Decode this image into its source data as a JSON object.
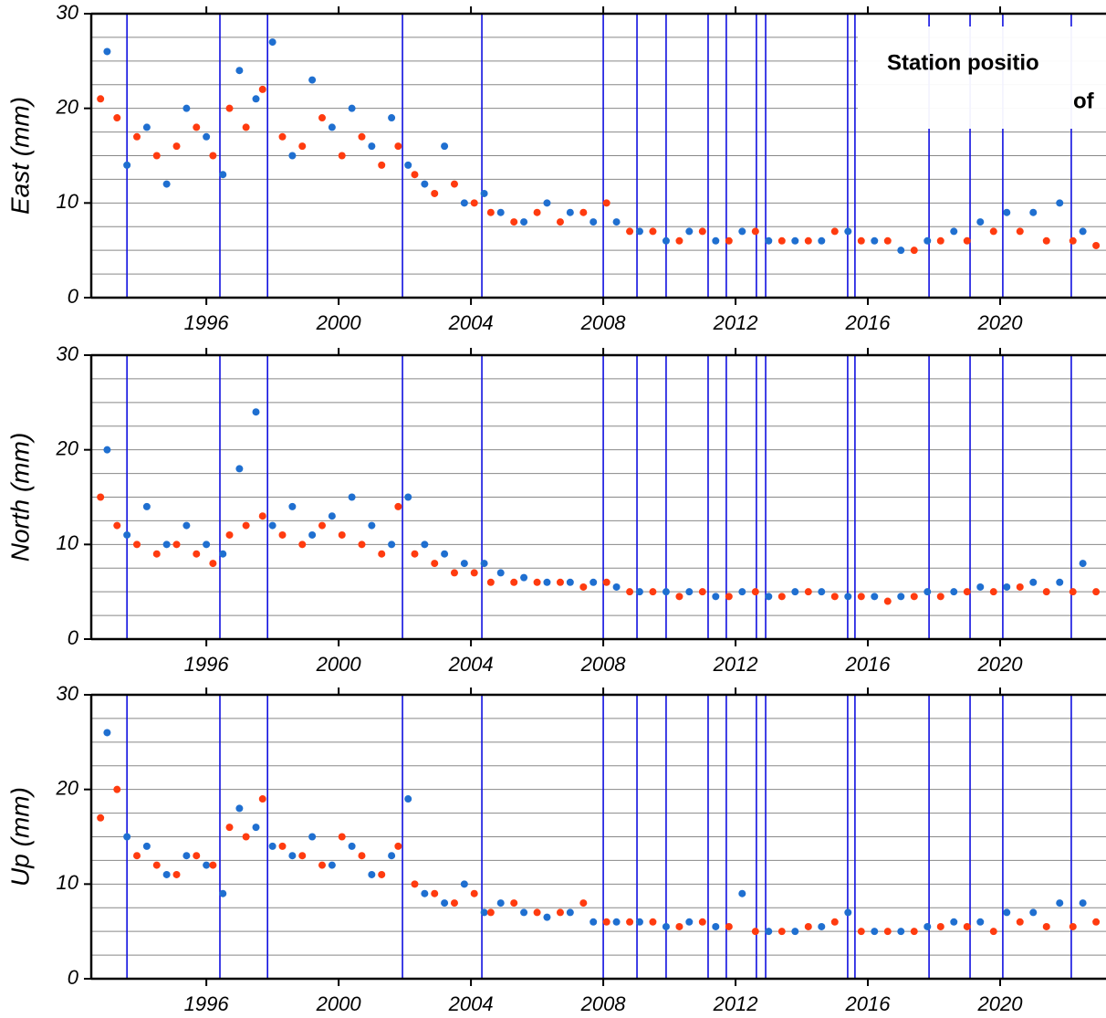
{
  "chart_data": [
    {
      "type": "scatter",
      "ylabel": "East (mm)",
      "annotation_lines": [
        "Station positio",
        "of"
      ],
      "xlim": [
        1992.52,
        2023.2
      ],
      "xticks": [
        1996,
        2000,
        2004,
        2008,
        2012,
        2016,
        2020
      ],
      "ylim": [
        0,
        30
      ],
      "yticks": [
        0,
        10,
        20,
        30
      ],
      "ygrid": [
        2.5,
        5,
        7.5,
        10,
        12.5,
        15,
        17.5,
        20,
        22.5,
        25,
        27.5
      ],
      "event_lines": [
        1993.6,
        1996.41,
        1997.85,
        2001.93,
        2004.33,
        2008.0,
        2009.02,
        2009.9,
        2011.17,
        2011.72,
        2012.63,
        2012.91,
        2015.39,
        2015.61,
        2017.85,
        2019.09,
        2020.08,
        2022.15
      ],
      "series": [
        {
          "color": "#1f6fd0",
          "x": [
            1993.0,
            1993.6,
            1994.2,
            1994.8,
            1995.4,
            1996.0,
            1996.5,
            1997.0,
            1997.5,
            1998.0,
            1998.6,
            1999.2,
            1999.8,
            2000.4,
            2001.0,
            2001.6,
            2002.1,
            2002.6,
            2003.2,
            2003.8,
            2004.4,
            2004.9,
            2005.6,
            2006.3,
            2007.0,
            2007.7,
            2008.4,
            2009.1,
            2009.9,
            2010.6,
            2011.4,
            2012.2,
            2013.0,
            2013.8,
            2014.6,
            2015.4,
            2016.2,
            2017.0,
            2017.8,
            2018.6,
            2019.4,
            2020.2,
            2021.0,
            2021.8,
            2022.5
          ],
          "values": [
            26,
            14,
            18,
            12,
            20,
            17,
            13,
            24,
            21,
            27,
            15,
            23,
            18,
            20,
            16,
            19,
            14,
            12,
            16,
            10,
            11,
            9,
            8,
            10,
            9,
            8,
            8,
            7,
            6,
            7,
            6,
            7,
            6,
            6,
            6,
            7,
            6,
            5,
            6,
            7,
            8,
            9,
            9,
            10,
            7
          ]
        },
        {
          "color": "#ff3b0f",
          "x": [
            1992.8,
            1993.3,
            1993.9,
            1994.5,
            1995.1,
            1995.7,
            1996.2,
            1996.7,
            1997.2,
            1997.7,
            1998.3,
            1998.9,
            1999.5,
            2000.1,
            2000.7,
            2001.3,
            2001.8,
            2002.3,
            2002.9,
            2003.5,
            2004.1,
            2004.6,
            2005.3,
            2006.0,
            2006.7,
            2007.4,
            2008.1,
            2008.8,
            2009.5,
            2010.3,
            2011.0,
            2011.8,
            2012.6,
            2013.4,
            2014.2,
            2015.0,
            2015.8,
            2016.6,
            2017.4,
            2018.2,
            2019.0,
            2019.8,
            2020.6,
            2021.4,
            2022.2,
            2022.9
          ],
          "values": [
            21,
            19,
            17,
            15,
            16,
            18,
            15,
            20,
            18,
            22,
            17,
            16,
            19,
            15,
            17,
            14,
            16,
            13,
            11,
            12,
            10,
            9,
            8,
            9,
            8,
            9,
            10,
            7,
            7,
            6,
            7,
            6,
            7,
            6,
            6,
            7,
            6,
            6,
            5,
            6,
            6,
            7,
            7,
            6,
            6,
            5.5
          ]
        }
      ]
    },
    {
      "type": "scatter",
      "ylabel": "North (mm)",
      "xlim": [
        1992.52,
        2023.2
      ],
      "xticks": [
        1996,
        2000,
        2004,
        2008,
        2012,
        2016,
        2020
      ],
      "ylim": [
        0,
        30
      ],
      "yticks": [
        0,
        10,
        20,
        30
      ],
      "ygrid": [
        2.5,
        5,
        7.5,
        10,
        12.5,
        15,
        17.5,
        20,
        22.5,
        25,
        27.5
      ],
      "event_lines": [
        1993.6,
        1996.41,
        1997.85,
        2001.93,
        2004.33,
        2008.0,
        2009.02,
        2009.9,
        2011.17,
        2011.72,
        2012.63,
        2012.91,
        2015.39,
        2015.61,
        2017.85,
        2019.09,
        2020.08,
        2022.15
      ],
      "series": [
        {
          "color": "#1f6fd0",
          "x": [
            1993.0,
            1993.6,
            1994.2,
            1994.8,
            1995.4,
            1996.0,
            1996.5,
            1997.0,
            1997.5,
            1998.0,
            1998.6,
            1999.2,
            1999.8,
            2000.4,
            2001.0,
            2001.6,
            2002.1,
            2002.6,
            2003.2,
            2003.8,
            2004.4,
            2004.9,
            2005.6,
            2006.3,
            2007.0,
            2007.7,
            2008.4,
            2009.1,
            2009.9,
            2010.6,
            2011.4,
            2012.2,
            2013.0,
            2013.8,
            2014.6,
            2015.4,
            2016.2,
            2017.0,
            2017.8,
            2018.6,
            2019.4,
            2020.2,
            2021.0,
            2021.8,
            2022.5
          ],
          "values": [
            20,
            11,
            14,
            10,
            12,
            10,
            9,
            18,
            24,
            12,
            14,
            11,
            13,
            15,
            12,
            10,
            15,
            10,
            9,
            8,
            8,
            7,
            6.5,
            6,
            6,
            6,
            5.5,
            5,
            5,
            5,
            4.5,
            5,
            4.5,
            5,
            5,
            4.5,
            4.5,
            4.5,
            5,
            5,
            5.5,
            5.5,
            6,
            6,
            8
          ]
        },
        {
          "color": "#ff3b0f",
          "x": [
            1992.8,
            1993.3,
            1993.9,
            1994.5,
            1995.1,
            1995.7,
            1996.2,
            1996.7,
            1997.2,
            1997.7,
            1998.3,
            1998.9,
            1999.5,
            2000.1,
            2000.7,
            2001.3,
            2001.8,
            2002.3,
            2002.9,
            2003.5,
            2004.1,
            2004.6,
            2005.3,
            2006.0,
            2006.7,
            2007.4,
            2008.1,
            2008.8,
            2009.5,
            2010.3,
            2011.0,
            2011.8,
            2012.6,
            2013.4,
            2014.2,
            2015.0,
            2015.8,
            2016.6,
            2017.4,
            2018.2,
            2019.0,
            2019.8,
            2020.6,
            2021.4,
            2022.2,
            2022.9
          ],
          "values": [
            15,
            12,
            10,
            9,
            10,
            9,
            8,
            11,
            12,
            13,
            11,
            10,
            12,
            11,
            10,
            9,
            14,
            9,
            8,
            7,
            7,
            6,
            6,
            6,
            6,
            5.5,
            6,
            5,
            5,
            4.5,
            5,
            4.5,
            5,
            4.5,
            5,
            4.5,
            4.5,
            4,
            4.5,
            4.5,
            5,
            5,
            5.5,
            5,
            5,
            5
          ]
        }
      ]
    },
    {
      "type": "scatter",
      "ylabel": "Up (mm)",
      "xlim": [
        1992.52,
        2023.2
      ],
      "xticks": [
        1996,
        2000,
        2004,
        2008,
        2012,
        2016,
        2020
      ],
      "ylim": [
        0,
        30
      ],
      "yticks": [
        0,
        10,
        20,
        30
      ],
      "ygrid": [
        2.5,
        5,
        7.5,
        10,
        12.5,
        15,
        17.5,
        20,
        22.5,
        25,
        27.5
      ],
      "event_lines": [
        1993.6,
        1996.41,
        1997.85,
        2001.93,
        2004.33,
        2008.0,
        2009.02,
        2009.9,
        2011.17,
        2011.72,
        2012.63,
        2012.91,
        2015.39,
        2015.61,
        2017.85,
        2019.09,
        2020.08,
        2022.15
      ],
      "series": [
        {
          "color": "#1f6fd0",
          "x": [
            1993.0,
            1993.6,
            1994.2,
            1994.8,
            1995.4,
            1996.0,
            1996.5,
            1997.0,
            1997.5,
            1998.0,
            1998.6,
            1999.2,
            1999.8,
            2000.4,
            2001.0,
            2001.6,
            2002.1,
            2002.6,
            2003.2,
            2003.8,
            2004.4,
            2004.9,
            2005.6,
            2006.3,
            2007.0,
            2007.7,
            2008.4,
            2009.1,
            2009.9,
            2010.6,
            2011.4,
            2012.2,
            2013.0,
            2013.8,
            2014.6,
            2015.4,
            2016.2,
            2017.0,
            2017.8,
            2018.6,
            2019.4,
            2020.2,
            2021.0,
            2021.8,
            2022.5
          ],
          "values": [
            26,
            15,
            14,
            11,
            13,
            12,
            9,
            18,
            16,
            14,
            13,
            15,
            12,
            14,
            11,
            13,
            19,
            9,
            8,
            10,
            7,
            8,
            7,
            6.5,
            7,
            6,
            6,
            6,
            5.5,
            6,
            5.5,
            9,
            5,
            5,
            5.5,
            7,
            5,
            5,
            5.5,
            6,
            6,
            7,
            7,
            8,
            8
          ]
        },
        {
          "color": "#ff3b0f",
          "x": [
            1992.8,
            1993.3,
            1993.9,
            1994.5,
            1995.1,
            1995.7,
            1996.2,
            1996.7,
            1997.2,
            1997.7,
            1998.3,
            1998.9,
            1999.5,
            2000.1,
            2000.7,
            2001.3,
            2001.8,
            2002.3,
            2002.9,
            2003.5,
            2004.1,
            2004.6,
            2005.3,
            2006.0,
            2006.7,
            2007.4,
            2008.1,
            2008.8,
            2009.5,
            2010.3,
            2011.0,
            2011.8,
            2012.6,
            2013.4,
            2014.2,
            2015.0,
            2015.8,
            2016.6,
            2017.4,
            2018.2,
            2019.0,
            2019.8,
            2020.6,
            2021.4,
            2022.2,
            2022.9
          ],
          "values": [
            17,
            20,
            13,
            12,
            11,
            13,
            12,
            16,
            15,
            19,
            14,
            13,
            12,
            15,
            13,
            11,
            14,
            10,
            9,
            8,
            9,
            7,
            8,
            7,
            7,
            8,
            6,
            6,
            6,
            5.5,
            6,
            5.5,
            5,
            5,
            5.5,
            6,
            5,
            5,
            5,
            5.5,
            5.5,
            5,
            6,
            5.5,
            5.5,
            6
          ]
        }
      ]
    }
  ]
}
